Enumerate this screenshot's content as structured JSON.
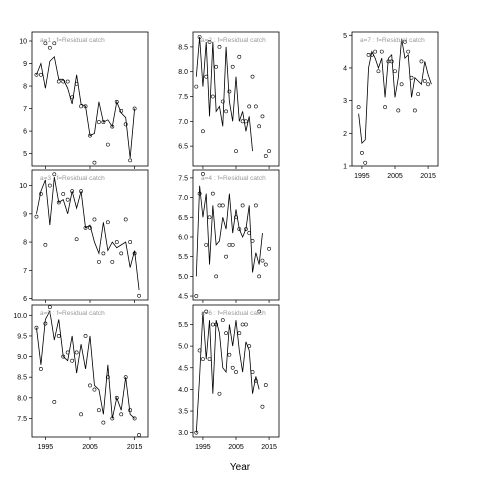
{
  "figure": {
    "xlabel": "Year"
  },
  "chart_data": [
    {
      "type": "line",
      "label": "a=1 :  f=Residual catch",
      "xlim": [
        1992,
        2018
      ],
      "ylim": [
        4.45,
        10.4
      ],
      "xticks": [
        1995,
        2005,
        2015
      ],
      "yticks": [
        5,
        6,
        7,
        8,
        9,
        10
      ],
      "show_xticklabels": false,
      "series": [
        {
          "type": "line",
          "x": [
            1993,
            1994,
            1995,
            1996,
            1997,
            1998,
            1999,
            2000,
            2001,
            2002,
            2003,
            2004,
            2005,
            2006,
            2007,
            2008,
            2009,
            2010,
            2011,
            2012,
            2013,
            2014,
            2015,
            2016,
            2017
          ],
          "values": [
            8.5,
            9.0,
            7.9,
            9.1,
            9.3,
            8.3,
            8.3,
            7.9,
            7.2,
            8.5,
            7.2,
            7.1,
            5.8,
            5.9,
            7.3,
            6.4,
            6.5,
            6.2,
            7.3,
            6.8,
            6.6,
            4.8,
            7.0,
            null,
            null
          ]
        },
        {
          "type": "scatter",
          "x": [
            1993,
            1994,
            1995,
            1996,
            1997,
            1998,
            1999,
            2000,
            2001,
            2002,
            2003,
            2004,
            2005,
            2006,
            2007,
            2008,
            2009,
            2010,
            2011,
            2012,
            2013,
            2014,
            2015
          ],
          "values": [
            8.5,
            8.5,
            9.9,
            9.7,
            9.9,
            8.2,
            8.2,
            8.2,
            7.5,
            8.1,
            7.1,
            7.1,
            5.8,
            4.6,
            6.4,
            6.4,
            5.4,
            6.2,
            7.3,
            6.9,
            6.3,
            4.7,
            7.0
          ]
        }
      ]
    },
    {
      "type": "line",
      "label": "a=3 :  f=Residual catch",
      "xlim": [
        1992,
        2018
      ],
      "ylim": [
        5.95,
        10.55
      ],
      "xticks": [
        1995,
        2005,
        2015
      ],
      "yticks": [
        6,
        7,
        8,
        9,
        10
      ],
      "show_xticklabels": false,
      "series": [
        {
          "type": "line",
          "x": [
            1993,
            1994,
            1995,
            1996,
            1997,
            1998,
            1999,
            2000,
            2001,
            2002,
            2003,
            2004,
            2005,
            2006,
            2007,
            2008,
            2009,
            2010,
            2011,
            2012,
            2013,
            2014,
            2015,
            2016,
            2017
          ],
          "values": [
            9.0,
            9.8,
            10.2,
            8.6,
            10.3,
            9.4,
            9.5,
            9.0,
            9.8,
            9.2,
            9.8,
            8.5,
            8.6,
            8.0,
            7.6,
            8.7,
            7.7,
            8.0,
            7.8,
            7.9,
            8.0,
            7.1,
            7.7,
            6.3,
            null
          ]
        },
        {
          "type": "scatter",
          "x": [
            1993,
            1994,
            1995,
            1996,
            1997,
            1998,
            1999,
            2000,
            2001,
            2002,
            2003,
            2004,
            2005,
            2006,
            2007,
            2008,
            2009,
            2010,
            2011,
            2012,
            2013,
            2014,
            2015,
            2016
          ],
          "values": [
            8.9,
            9.7,
            7.9,
            10.0,
            10.4,
            9.4,
            9.7,
            9.5,
            9.8,
            8.1,
            9.8,
            8.5,
            8.5,
            8.8,
            7.3,
            7.6,
            8.7,
            7.3,
            8.0,
            7.6,
            8.8,
            8.0,
            7.6,
            6.1
          ]
        }
      ]
    },
    {
      "type": "line",
      "label": "a=5 :  f=Residual catch",
      "xlim": [
        1992,
        2018
      ],
      "ylim": [
        7.05,
        10.25
      ],
      "xticks": [
        1995,
        2005,
        2015
      ],
      "yticks": [
        7.5,
        8.0,
        8.5,
        9.0,
        9.5,
        10.0
      ],
      "show_xticklabels": true,
      "series": [
        {
          "type": "line",
          "x": [
            1993,
            1994,
            1995,
            1996,
            1997,
            1998,
            1999,
            2000,
            2001,
            2002,
            2003,
            2004,
            2005,
            2006,
            2007,
            2008,
            2009,
            2010,
            2011,
            2012,
            2013,
            2014,
            2015,
            2016,
            2017
          ],
          "values": [
            9.7,
            8.8,
            9.9,
            10.1,
            9.4,
            9.9,
            9.0,
            8.9,
            9.5,
            8.6,
            9.3,
            8.7,
            9.5,
            8.3,
            8.2,
            7.6,
            8.8,
            7.5,
            8.0,
            7.7,
            8.5,
            7.6,
            7.5,
            null,
            null
          ]
        },
        {
          "type": "scatter",
          "x": [
            1993,
            1994,
            1995,
            1996,
            1997,
            1998,
            1999,
            2000,
            2001,
            2002,
            2003,
            2004,
            2005,
            2006,
            2007,
            2008,
            2009,
            2010,
            2011,
            2012,
            2013,
            2014,
            2015,
            2016,
            2017
          ],
          "values": [
            9.7,
            8.7,
            9.8,
            10.2,
            7.9,
            9.5,
            9.0,
            9.1,
            8.9,
            9.1,
            7.6,
            9.5,
            8.3,
            8.2,
            7.7,
            7.4,
            8.5,
            7.5,
            8.0,
            7.6,
            8.5,
            7.7,
            7.5,
            7.1,
            null
          ]
        }
      ]
    },
    {
      "type": "line",
      "label": "a=2 :  f=Residual catch",
      "xlim": [
        1992,
        2018
      ],
      "ylim": [
        6.1,
        8.8
      ],
      "xticks": [
        1995,
        2005,
        2015
      ],
      "yticks": [
        6.5,
        7.0,
        7.5,
        8.0,
        8.5
      ],
      "show_xticklabels": false,
      "series": [
        {
          "type": "line",
          "x": [
            1993,
            1994,
            1995,
            1996,
            1997,
            1998,
            1999,
            2000,
            2001,
            2002,
            2003,
            2004,
            2005,
            2006,
            2007,
            2008,
            2009,
            2010,
            2011,
            2012,
            2013,
            2014,
            2015,
            2016,
            2017
          ],
          "values": [
            7.9,
            8.7,
            7.7,
            8.6,
            7.1,
            8.6,
            7.2,
            7.3,
            6.9,
            8.5,
            7.4,
            7.0,
            7.9,
            7.0,
            7.2,
            6.8,
            7.1,
            6.4,
            null,
            null,
            null,
            null,
            null,
            null,
            null
          ]
        },
        {
          "type": "scatter",
          "x": [
            1993,
            1994,
            1995,
            1996,
            1997,
            1998,
            1999,
            2000,
            2001,
            2002,
            2003,
            2004,
            2005,
            2006,
            2007,
            2008,
            2009,
            2010,
            2011,
            2012,
            2013,
            2014,
            2015,
            2016,
            2017
          ],
          "values": [
            7.7,
            8.7,
            6.8,
            7.9,
            8.6,
            7.5,
            8.1,
            8.5,
            7.4,
            7.2,
            7.6,
            8.1,
            6.4,
            8.3,
            7.0,
            7.0,
            7.3,
            7.9,
            7.3,
            6.9,
            7.1,
            6.3,
            6.4,
            null,
            null
          ]
        }
      ]
    },
    {
      "type": "line",
      "label": "a=4 :  f=Residual catch",
      "xlim": [
        1992,
        2018
      ],
      "ylim": [
        4.4,
        7.7
      ],
      "xticks": [
        1995,
        2005,
        2015
      ],
      "yticks": [
        4.5,
        5.0,
        5.5,
        6.0,
        6.5,
        7.0,
        7.5
      ],
      "show_xticklabels": false,
      "series": [
        {
          "type": "line",
          "x": [
            1993,
            1994,
            1995,
            1996,
            1997,
            1998,
            1999,
            2000,
            2001,
            2002,
            2003,
            2004,
            2005,
            2006,
            2007,
            2008,
            2009,
            2010,
            2011,
            2012,
            2013,
            2014,
            2015,
            2016,
            2017
          ],
          "values": [
            5.0,
            7.3,
            6.5,
            7.1,
            5.3,
            6.8,
            5.8,
            5.9,
            6.5,
            6.2,
            7.1,
            6.1,
            6.7,
            6.2,
            6.0,
            6.2,
            6.8,
            5.1,
            5.6,
            5.3,
            6.1,
            null,
            null,
            null,
            null
          ]
        },
        {
          "type": "scatter",
          "x": [
            1993,
            1994,
            1995,
            1996,
            1997,
            1998,
            1999,
            2000,
            2001,
            2002,
            2003,
            2004,
            2005,
            2006,
            2007,
            2008,
            2009,
            2010,
            2011,
            2012,
            2013,
            2014,
            2015,
            2016,
            2017
          ],
          "values": [
            4.5,
            7.1,
            7.6,
            5.8,
            6.5,
            7.1,
            5.0,
            6.8,
            6.8,
            5.5,
            5.8,
            5.8,
            6.5,
            6.2,
            6.8,
            6.2,
            6.1,
            5.9,
            6.8,
            5.0,
            5.4,
            5.3,
            5.7,
            null,
            null
          ]
        }
      ]
    },
    {
      "type": "line",
      "label": "a=6 :  f=Residual catch",
      "xlim": [
        1992,
        2018
      ],
      "ylim": [
        2.9,
        5.95
      ],
      "xticks": [
        1995,
        2005,
        2015
      ],
      "yticks": [
        3.0,
        3.5,
        4.0,
        4.5,
        5.0,
        5.5
      ],
      "show_xticklabels": true,
      "series": [
        {
          "type": "line",
          "x": [
            1993,
            1994,
            1995,
            1996,
            1997,
            1998,
            1999,
            2000,
            2001,
            2002,
            2003,
            2004,
            2005,
            2006,
            2007,
            2008,
            2009,
            2010,
            2011,
            2012,
            2013,
            2014,
            2015,
            2016,
            2017
          ],
          "values": [
            3.0,
            4.3,
            5.8,
            4.7,
            5.6,
            3.9,
            5.6,
            5.3,
            4.5,
            4.4,
            5.5,
            5.0,
            5.6,
            4.9,
            4.4,
            5.1,
            4.9,
            3.9,
            4.3,
            4.0,
            null,
            null,
            null,
            null,
            null
          ]
        },
        {
          "type": "scatter",
          "x": [
            1993,
            1994,
            1995,
            1996,
            1997,
            1998,
            1999,
            2000,
            2001,
            2002,
            2003,
            2004,
            2005,
            2006,
            2007,
            2008,
            2009,
            2010,
            2011,
            2012,
            2013,
            2014,
            2015,
            2016,
            2017
          ],
          "values": [
            3.0,
            4.9,
            4.7,
            5.8,
            4.7,
            5.5,
            5.5,
            3.9,
            5.6,
            5.3,
            4.8,
            4.5,
            4.4,
            5.3,
            5.5,
            5.5,
            5.0,
            4.4,
            4.2,
            5.8,
            3.6,
            4.1,
            null,
            null,
            null
          ]
        }
      ]
    },
    {
      "type": "line",
      "label": "a=7 :  f=Residual catch",
      "xlim": [
        1992,
        2018
      ],
      "ylim": [
        1.0,
        5.1
      ],
      "xticks": [
        1995,
        2005,
        2015
      ],
      "yticks": [
        1,
        2,
        3,
        4,
        5
      ],
      "show_xticklabels": true,
      "series": [
        {
          "type": "line",
          "x": [
            1994,
            1995,
            1996,
            1997,
            1998,
            1999,
            2000,
            2001,
            2002,
            2003,
            2004,
            2005,
            2006,
            2007,
            2008,
            2009,
            2010,
            2011,
            2012,
            2013,
            2014,
            2015,
            2016,
            2017
          ],
          "values": [
            2.6,
            1.7,
            1.8,
            4.0,
            4.5,
            4.3,
            4.0,
            4.3,
            3.1,
            4.3,
            4.4,
            3.1,
            3.7,
            4.9,
            4.3,
            4.4,
            3.1,
            3.7,
            3.6,
            3.5,
            4.2,
            3.8,
            3.5,
            null
          ]
        },
        {
          "type": "scatter",
          "x": [
            1994,
            1995,
            1996,
            1997,
            1998,
            1999,
            2000,
            2001,
            2002,
            2003,
            2004,
            2005,
            2006,
            2007,
            2008,
            2009,
            2010,
            2011,
            2012,
            2013,
            2014,
            2015,
            2016,
            2017
          ],
          "values": [
            2.8,
            1.4,
            1.1,
            4.4,
            4.4,
            4.5,
            3.9,
            4.5,
            2.8,
            4.2,
            4.2,
            3.9,
            2.7,
            3.5,
            4.8,
            4.5,
            3.7,
            2.7,
            3.2,
            4.2,
            3.6,
            3.5,
            null,
            null
          ]
        }
      ]
    }
  ]
}
